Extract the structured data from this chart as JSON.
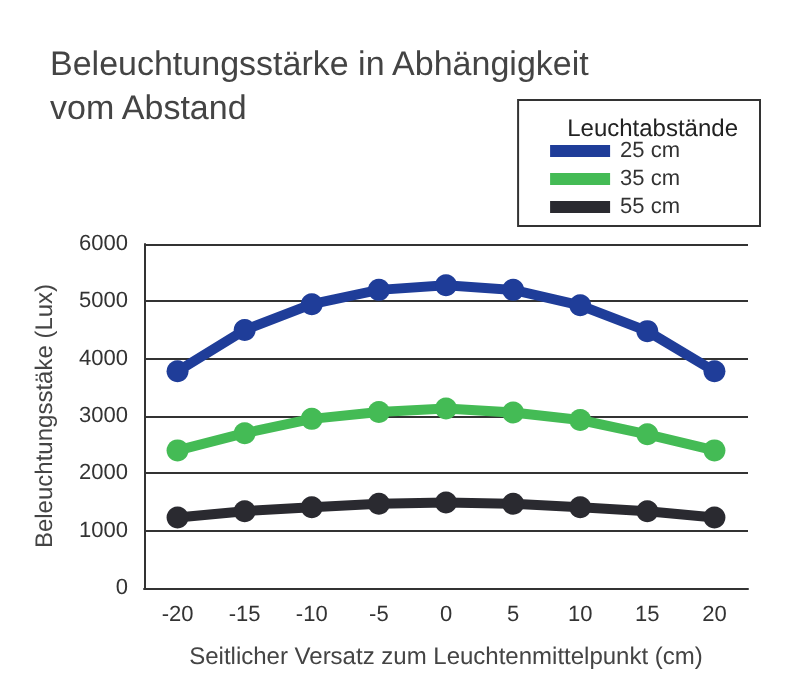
{
  "chart_data": {
    "type": "line",
    "title": "Beleuchtungsstärke in Abhängigkeit\nvom Abstand",
    "xlabel": "Seitlicher Versatz zum Leuchtenmittelpunkt (cm)",
    "ylabel": "Beleuchtungsstäke (Lux)",
    "legend_title": "Leuchtabstände",
    "categories": [
      "-20",
      "-15",
      "-10",
      "-5",
      "0",
      "5",
      "10",
      "15",
      "20"
    ],
    "series": [
      {
        "name": "25 cm",
        "color": "#1f3d99",
        "values": [
          3780,
          4500,
          4950,
          5200,
          5280,
          5200,
          4930,
          4480,
          3780
        ]
      },
      {
        "name": "35 cm",
        "color": "#44bb55",
        "values": [
          2400,
          2700,
          2950,
          3070,
          3130,
          3060,
          2930,
          2680,
          2400
        ]
      },
      {
        "name": "55 cm",
        "color": "#2a2a30",
        "values": [
          1230,
          1340,
          1410,
          1470,
          1490,
          1470,
          1410,
          1340,
          1230
        ]
      }
    ],
    "ylim": [
      0,
      6000
    ],
    "yticks": [
      0,
      1000,
      2000,
      3000,
      4000,
      5000,
      6000
    ],
    "grid": "y",
    "legend": "top right",
    "marker": "circle",
    "line_style": "solid"
  }
}
